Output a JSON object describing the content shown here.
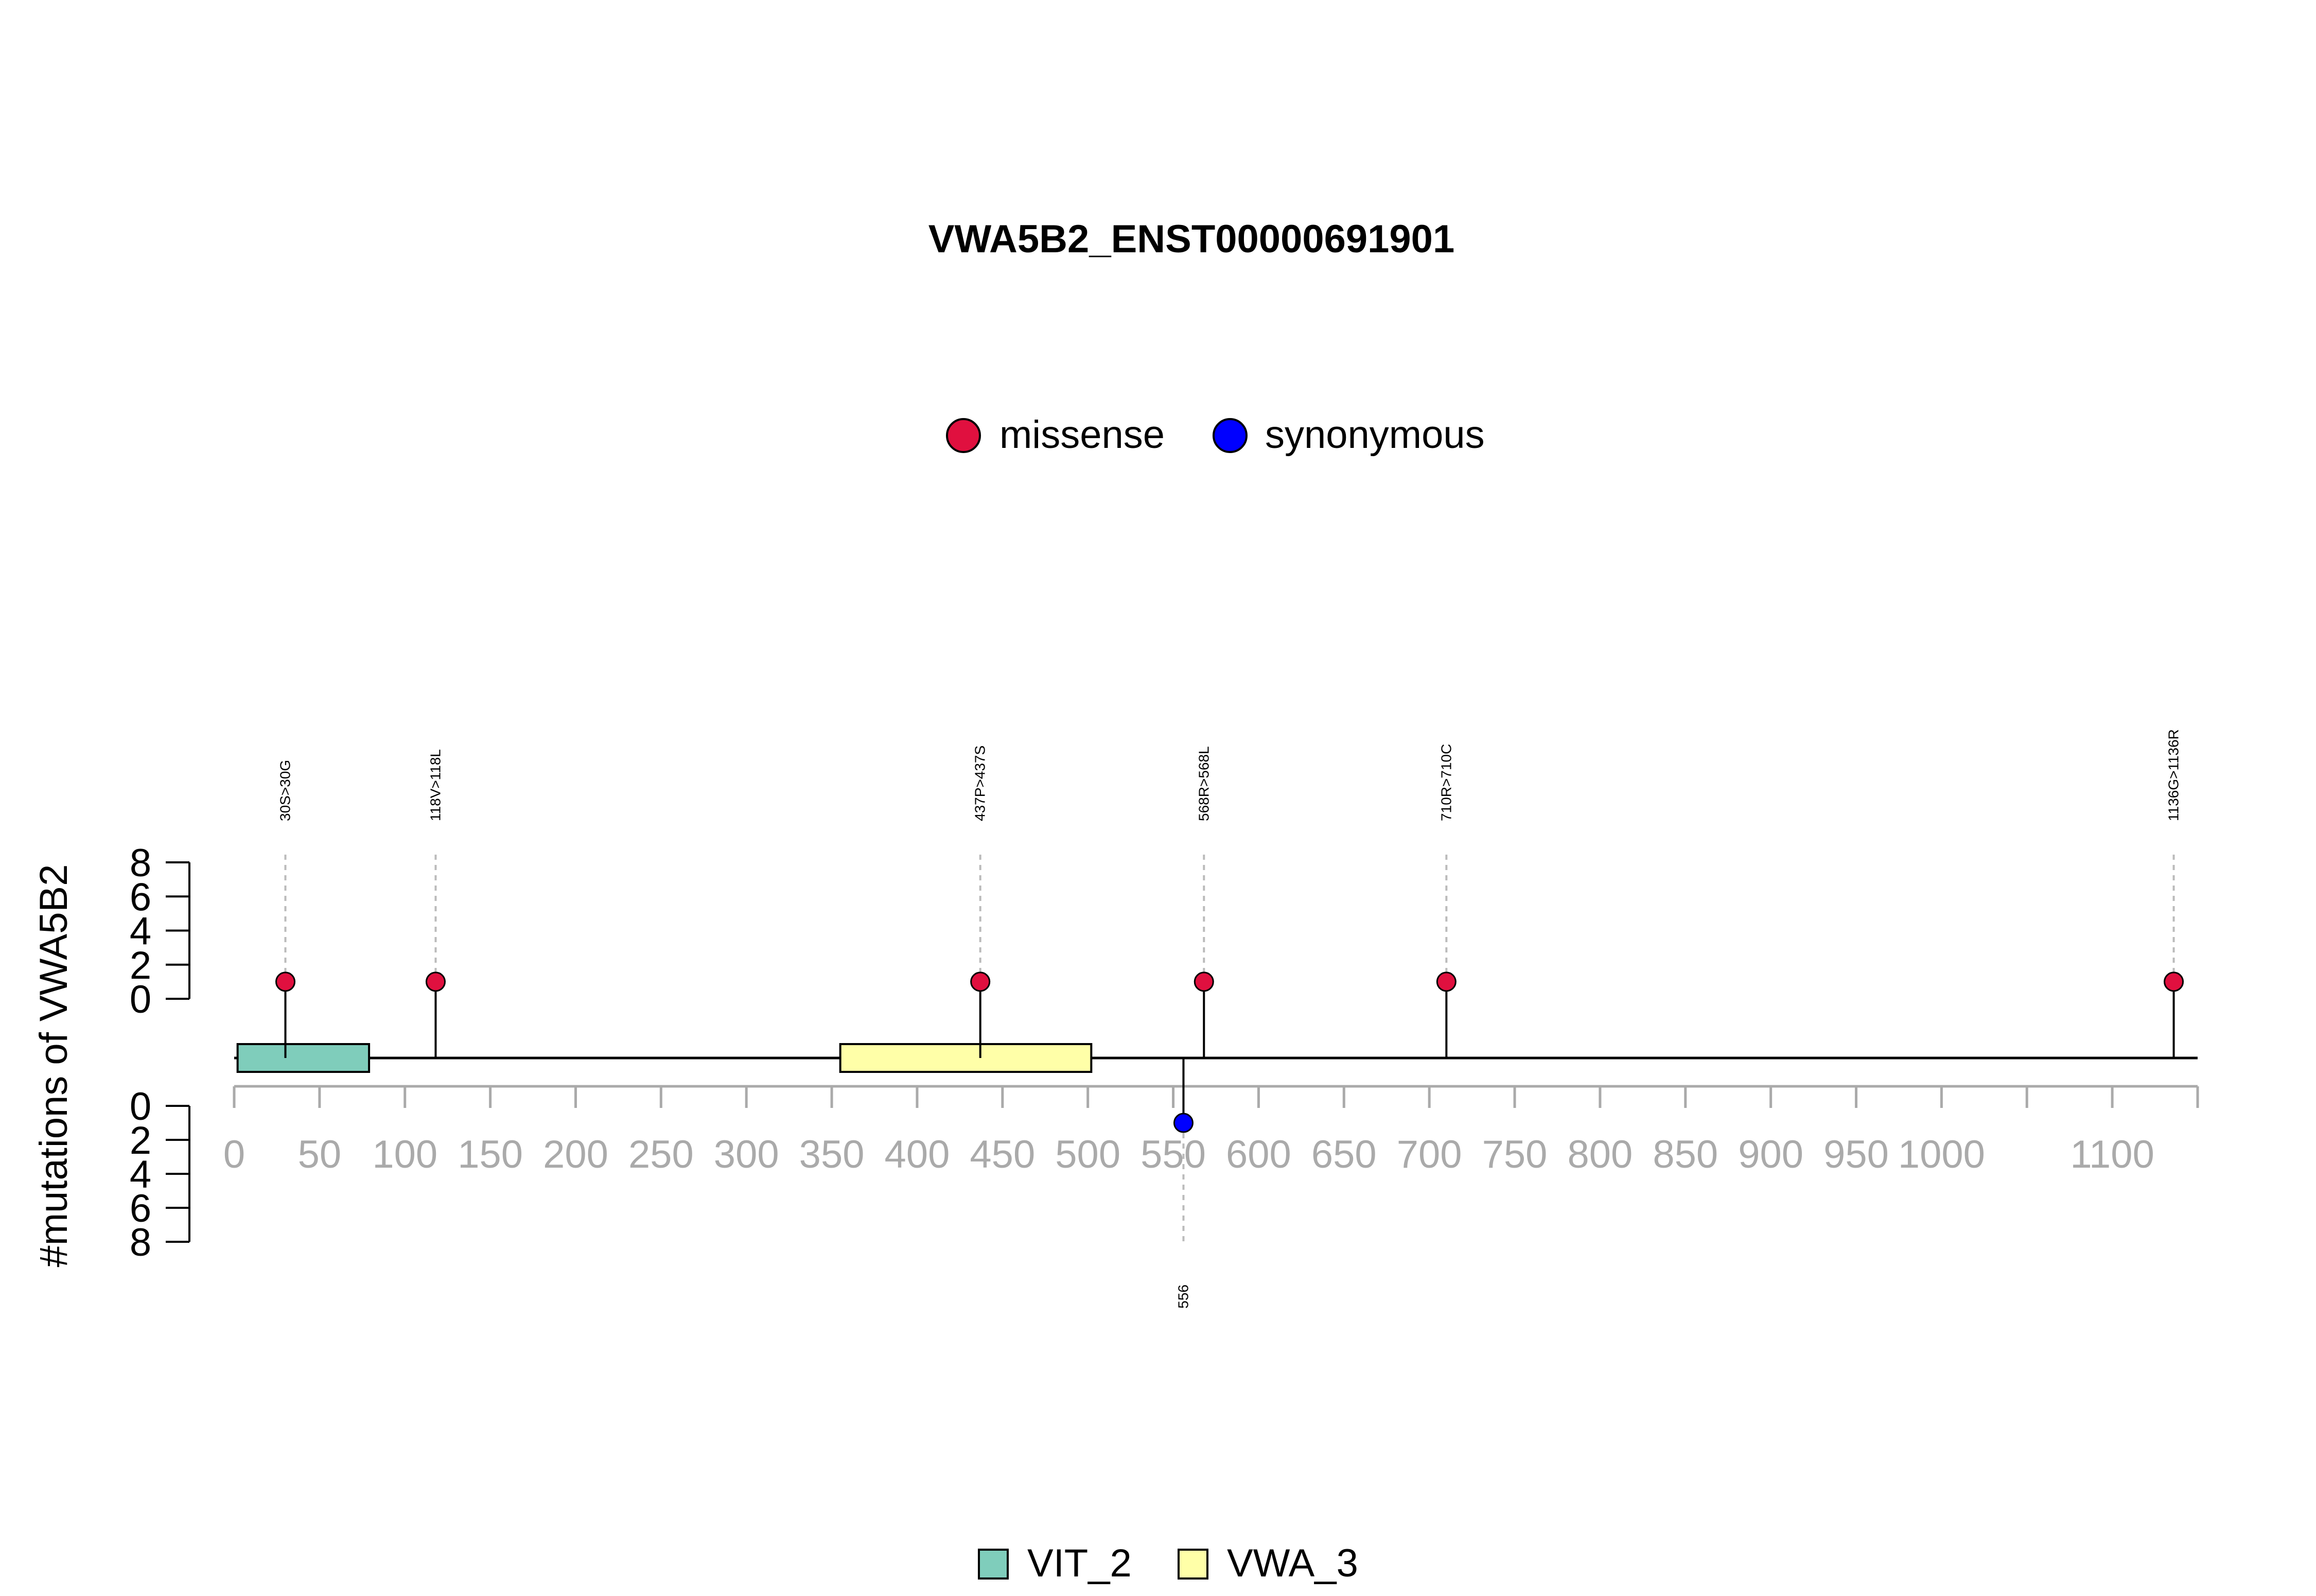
{
  "chart_data": {
    "type": "lollipop",
    "title": "VWA5B2_ENST00000691901",
    "ylabel": "#mutations of VWA5B2",
    "x_ticks": [
      0,
      50,
      100,
      150,
      200,
      250,
      300,
      350,
      400,
      450,
      500,
      550,
      600,
      650,
      700,
      750,
      800,
      850,
      900,
      950,
      1000,
      1100
    ],
    "x_minor_ticks": [
      1050
    ],
    "xlim": [
      0,
      1150
    ],
    "y_ticks_upper": [
      0,
      2,
      4,
      6,
      8
    ],
    "y_ticks_lower": [
      0,
      2,
      4,
      6,
      8
    ],
    "ylim": [
      0,
      8
    ],
    "mutation_legend": [
      {
        "label": "missense",
        "color": "#E0103F"
      },
      {
        "label": "synonymous",
        "color": "#0000FF"
      }
    ],
    "mutations_upper": [
      {
        "position": 30,
        "label": "30S>30G",
        "count": 1,
        "type": "missense"
      },
      {
        "position": 118,
        "label": "118V>118L",
        "count": 1,
        "type": "missense"
      },
      {
        "position": 437,
        "label": "437P>437S",
        "count": 1,
        "type": "missense"
      },
      {
        "position": 568,
        "label": "568R>568L",
        "count": 1,
        "type": "missense"
      },
      {
        "position": 710,
        "label": "710R>710C",
        "count": 1,
        "type": "missense"
      },
      {
        "position": 1136,
        "label": "1136G>1136R",
        "count": 1,
        "type": "missense"
      }
    ],
    "mutations_lower": [
      {
        "position": 556,
        "label": "556",
        "count": 1,
        "type": "synonymous"
      }
    ],
    "domains": [
      {
        "name": "VIT_2",
        "start": 2,
        "end": 79,
        "color": "#7FCDBB"
      },
      {
        "name": "VWA_3",
        "start": 355,
        "end": 502,
        "color": "#FFFFA8"
      }
    ],
    "domain_legend": [
      {
        "label": "VIT_2",
        "color": "#7FCDBB"
      },
      {
        "label": "VWA_3",
        "color": "#FFFFA8"
      }
    ]
  }
}
